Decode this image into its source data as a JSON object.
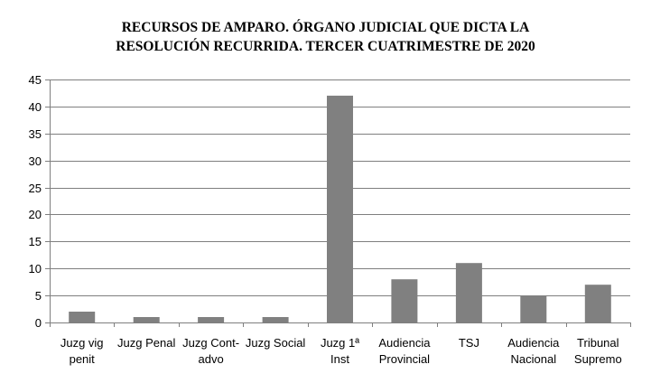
{
  "chart_data": {
    "type": "bar",
    "title_lines": [
      "RECURSOS DE AMPARO. ÓRGANO JUDICIAL QUE DICTA LA",
      "RESOLUCIÓN RECURRIDA. TERCER CUATRIMESTRE DE 2020"
    ],
    "categories": [
      [
        "Juzg vig",
        "penit"
      ],
      [
        "Juzg Penal"
      ],
      [
        "Juzg Cont-",
        "advo"
      ],
      [
        "Juzg Social"
      ],
      [
        "Juzg 1ª",
        "Inst"
      ],
      [
        "Audiencia",
        "Provincial"
      ],
      [
        "TSJ"
      ],
      [
        "Audiencia",
        "Nacional"
      ],
      [
        "Tribunal",
        "Supremo"
      ]
    ],
    "values": [
      2,
      1,
      1,
      1,
      42,
      8,
      11,
      5,
      7
    ],
    "ylim": [
      0,
      45
    ],
    "yticks": [
      0,
      5,
      10,
      15,
      20,
      25,
      30,
      35,
      40,
      45
    ],
    "grid": true,
    "legend": "none",
    "colors": {
      "bar": "#808080",
      "grid": "#7f7f7f",
      "axis": "#7f7f7f"
    }
  }
}
